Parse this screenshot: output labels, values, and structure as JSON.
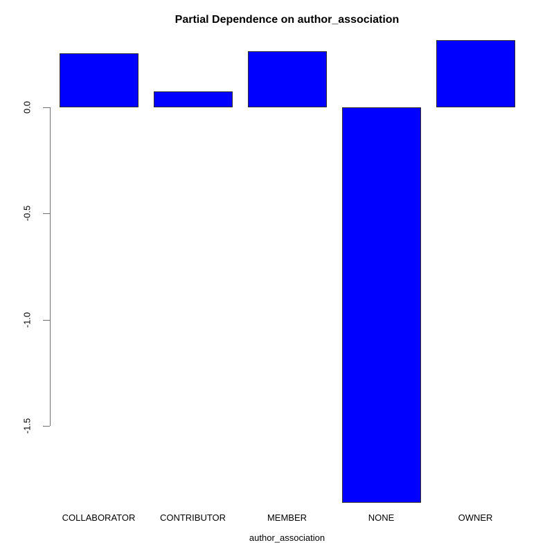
{
  "chart_data": {
    "type": "bar",
    "title": "Partial Dependence on author_association",
    "xlabel": "author_association",
    "ylabel": "",
    "categories": [
      "COLLABORATOR",
      "CONTRIBUTOR",
      "MEMBER",
      "NONE",
      "OWNER"
    ],
    "values": [
      0.253,
      0.074,
      0.263,
      -1.863,
      0.315
    ],
    "yticks": [
      0.0,
      -0.5,
      -1.0,
      -1.5
    ],
    "ytick_labels": [
      "0.0",
      "-0.5",
      "-1.0",
      "-1.5"
    ],
    "ylim": [
      -1.87,
      0.35
    ],
    "grid": false,
    "legend": null,
    "bar_color": "#0000FF",
    "bar_border_color": "#2E2E2E",
    "axis_color": "#6E6E6E",
    "text_color": "#000000"
  }
}
